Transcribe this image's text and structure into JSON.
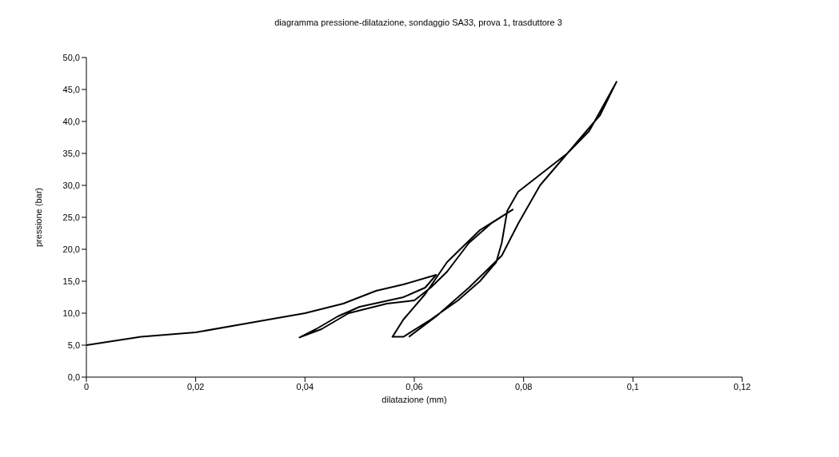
{
  "chart_data": {
    "type": "line",
    "title": "diagramma pressione-dilatazione, sondaggio SA33, prova 1, trasduttore 3",
    "xlabel": "dilatazione (mm)",
    "ylabel": "pressione (bar)",
    "xlim": [
      0,
      0.12
    ],
    "xticks": [
      0,
      {
        "value": 0.02,
        "label": "0,02"
      },
      {
        "value": 0.04,
        "label": "0,04"
      },
      {
        "value": 0.06,
        "label": "0,06"
      },
      {
        "value": 0.08,
        "label": "0,08"
      },
      {
        "value": 0.1,
        "label": "0,1"
      },
      {
        "value": 0.12,
        "label": "0,12"
      }
    ],
    "ylim": [
      0,
      50
    ],
    "yticks": [
      {
        "value": 0,
        "label": "0,0"
      },
      {
        "value": 5,
        "label": "5,0"
      },
      {
        "value": 10,
        "label": "10,0"
      },
      {
        "value": 15,
        "label": "15,0"
      },
      {
        "value": 20,
        "label": "20,0"
      },
      {
        "value": 25,
        "label": "25,0"
      },
      {
        "value": 30,
        "label": "30,0"
      },
      {
        "value": 35,
        "label": "35,0"
      },
      {
        "value": 40,
        "label": "40,0"
      },
      {
        "value": 45,
        "label": "45,0"
      },
      {
        "value": 50,
        "label": "50,0"
      }
    ],
    "grid": false,
    "legend": false,
    "marker": "none",
    "line_style": "solid",
    "series": [
      {
        "color": "#000000",
        "x": [
          0,
          0.01,
          0.02,
          0.03,
          0.04,
          0.047,
          0.053,
          0.058,
          0.064,
          0.062,
          0.058,
          0.05,
          0.046,
          0.042,
          0.039,
          0.043,
          0.048,
          0.055,
          0.06,
          0.063,
          0.066,
          0.07,
          0.074,
          0.078,
          0.072,
          0.066,
          0.062,
          0.058,
          0.056,
          0.058,
          0.063,
          0.068,
          0.072,
          0.075,
          0.076,
          0.077,
          0.079,
          0.082,
          0.088,
          0.092,
          0.097,
          0.094,
          0.088,
          0.083,
          0.079,
          0.076,
          0.07,
          0.064,
          0.059
        ],
        "values": [
          5,
          6.3,
          7,
          8.5,
          10,
          11.5,
          13.5,
          14.5,
          16,
          14,
          12.5,
          11,
          9.5,
          7.5,
          6.2,
          7.5,
          10,
          11.5,
          12,
          14,
          16.5,
          21,
          24,
          26.2,
          23,
          18,
          13,
          9,
          6.3,
          6.3,
          9,
          12,
          15,
          18,
          21,
          26,
          29,
          31,
          35,
          38.5,
          46.2,
          41,
          35,
          30,
          24,
          19,
          14,
          9.5,
          6.3
        ]
      }
    ]
  }
}
